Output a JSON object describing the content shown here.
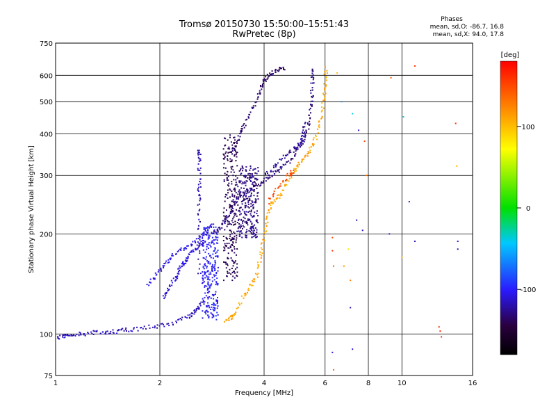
{
  "chart_data": {
    "type": "scatter",
    "title": "Tromsø 20150730 15:50:00–15:51:43",
    "subtitle": "RwPretec (8p)",
    "xlabel": "Frequency [MHz]",
    "ylabel": "Stationary phase Virtual Height [km]",
    "x_scale": "log",
    "y_scale": "log",
    "xlim": [
      1,
      16
    ],
    "ylim": [
      75,
      750
    ],
    "x_ticks": [
      1,
      2,
      4,
      6,
      8,
      10,
      16
    ],
    "x_tick_labels": [
      "1",
      "2",
      "4",
      "6",
      "8",
      "10",
      "16"
    ],
    "y_ticks": [
      75,
      100,
      200,
      300,
      400,
      500,
      600,
      750
    ],
    "y_tick_labels": [
      "75",
      "100",
      "200",
      "300",
      "400",
      "500",
      "600",
      "750"
    ],
    "grid": true,
    "phases_box": {
      "title": "Phases",
      "line_o": "mean, sd,O: -86.7, 16.8",
      "line_x": "mean, sd,X:  94.0, 17.8"
    },
    "colorbar": {
      "label": "[deg]",
      "range": [
        -180,
        180
      ],
      "ticks": [
        100,
        0,
        -100
      ],
      "tick_labels": [
        "100",
        "0",
        "-100"
      ]
    },
    "traces": [
      {
        "phase": -115,
        "points": [
          [
            1.0,
            97
          ],
          [
            1.05,
            98
          ],
          [
            1.1,
            100
          ],
          [
            1.2,
            100
          ],
          [
            1.3,
            101
          ],
          [
            1.4,
            101
          ],
          [
            1.5,
            102
          ],
          [
            1.6,
            103
          ],
          [
            1.8,
            104
          ],
          [
            2.0,
            106
          ],
          [
            2.2,
            108
          ],
          [
            2.4,
            112
          ],
          [
            2.5,
            116
          ],
          [
            2.6,
            120
          ],
          [
            2.7,
            128
          ]
        ]
      },
      {
        "phase": -110,
        "points": [
          [
            2.05,
            128
          ],
          [
            2.1,
            135
          ],
          [
            2.2,
            145
          ],
          [
            2.25,
            150
          ],
          [
            2.3,
            160
          ],
          [
            2.35,
            165
          ],
          [
            2.4,
            170
          ],
          [
            2.5,
            178
          ],
          [
            2.6,
            185
          ],
          [
            2.7,
            190
          ]
        ]
      },
      {
        "phase": -105,
        "points": [
          [
            1.85,
            140
          ],
          [
            1.95,
            150
          ],
          [
            2.05,
            160
          ],
          [
            2.15,
            170
          ],
          [
            2.3,
            180
          ],
          [
            2.45,
            185
          ],
          [
            2.6,
            195
          ],
          [
            2.75,
            205
          ],
          [
            2.85,
            215
          ]
        ]
      },
      {
        "phase": -120,
        "points": [
          [
            2.6,
            150
          ],
          [
            2.6,
            200
          ],
          [
            2.6,
            240
          ],
          [
            2.6,
            270
          ],
          [
            2.6,
            300
          ],
          [
            2.6,
            340
          ],
          [
            2.6,
            360
          ]
        ]
      },
      {
        "phase": -130,
        "points": [
          [
            2.85,
            200
          ],
          [
            2.95,
            205
          ],
          [
            3.05,
            215
          ],
          [
            3.15,
            225
          ],
          [
            3.25,
            240
          ],
          [
            3.35,
            255
          ],
          [
            3.5,
            265
          ],
          [
            3.7,
            275
          ],
          [
            3.9,
            285
          ],
          [
            4.1,
            295
          ],
          [
            4.3,
            305
          ],
          [
            4.5,
            315
          ],
          [
            4.8,
            335
          ],
          [
            5.0,
            360
          ],
          [
            5.2,
            380
          ],
          [
            5.35,
            420
          ],
          [
            5.45,
            470
          ],
          [
            5.5,
            520
          ],
          [
            5.52,
            590
          ],
          [
            5.53,
            630
          ]
        ]
      },
      {
        "phase": -135,
        "points": [
          [
            3.3,
            360
          ],
          [
            3.4,
            395
          ],
          [
            3.5,
            420
          ],
          [
            3.7,
            470
          ],
          [
            3.85,
            520
          ],
          [
            3.95,
            560
          ],
          [
            4.05,
            590
          ],
          [
            4.2,
            610
          ],
          [
            4.4,
            625
          ],
          [
            4.6,
            630
          ]
        ]
      },
      {
        "phase": -125,
        "points": [
          [
            4.0,
            300
          ],
          [
            4.3,
            320
          ],
          [
            4.6,
            345
          ],
          [
            4.9,
            360
          ],
          [
            5.1,
            375
          ],
          [
            5.2,
            400
          ],
          [
            5.25,
            430
          ]
        ]
      },
      {
        "phase": 110,
        "points": [
          [
            3.1,
            110
          ],
          [
            3.2,
            112
          ],
          [
            3.3,
            115
          ],
          [
            3.5,
            130
          ],
          [
            3.65,
            140
          ],
          [
            3.8,
            150
          ],
          [
            3.9,
            170
          ],
          [
            4.0,
            195
          ],
          [
            4.05,
            215
          ],
          [
            4.15,
            240
          ],
          [
            4.3,
            255
          ],
          [
            4.5,
            265
          ],
          [
            4.7,
            290
          ],
          [
            4.9,
            310
          ],
          [
            5.1,
            330
          ],
          [
            5.35,
            350
          ],
          [
            5.6,
            380
          ],
          [
            5.8,
            430
          ],
          [
            5.95,
            500
          ],
          [
            6.0,
            560
          ],
          [
            6.05,
            640
          ]
        ]
      },
      {
        "phase": 150,
        "points": [
          [
            4.1,
            250
          ],
          [
            4.4,
            275
          ],
          [
            4.7,
            300
          ],
          [
            4.9,
            310
          ]
        ]
      }
    ],
    "columns": [
      {
        "phase": -140,
        "freq_range": [
          3.05,
          3.35
        ],
        "height_range": [
          145,
          400
        ]
      },
      {
        "phase": -130,
        "freq_range": [
          3.35,
          3.85
        ],
        "height_range": [
          195,
          320
        ]
      },
      {
        "phase": -100,
        "freq_range": [
          2.65,
          2.95
        ],
        "height_range": [
          110,
          210
        ]
      }
    ],
    "scattered_points": [
      {
        "f": 6.3,
        "h": 195,
        "phase": 150
      },
      {
        "f": 6.3,
        "h": 178,
        "phase": 160
      },
      {
        "f": 6.35,
        "h": 160,
        "phase": 140
      },
      {
        "f": 6.8,
        "h": 160,
        "phase": 120
      },
      {
        "f": 7.1,
        "h": 145,
        "phase": 130
      },
      {
        "f": 6.3,
        "h": 88,
        "phase": -110
      },
      {
        "f": 6.35,
        "h": 78,
        "phase": 140
      },
      {
        "f": 6.5,
        "h": 610,
        "phase": 100
      },
      {
        "f": 6.7,
        "h": 500,
        "phase": -60
      },
      {
        "f": 7.2,
        "h": 460,
        "phase": -40
      },
      {
        "f": 7.5,
        "h": 410,
        "phase": -110
      },
      {
        "f": 7.8,
        "h": 380,
        "phase": 150
      },
      {
        "f": 7.0,
        "h": 180,
        "phase": 80
      },
      {
        "f": 7.4,
        "h": 220,
        "phase": -120
      },
      {
        "f": 7.7,
        "h": 205,
        "phase": -110
      },
      {
        "f": 7.1,
        "h": 120,
        "phase": -120
      },
      {
        "f": 7.2,
        "h": 90,
        "phase": -110
      },
      {
        "f": 9.3,
        "h": 590,
        "phase": 140
      },
      {
        "f": 9.2,
        "h": 200,
        "phase": -110
      },
      {
        "f": 10.0,
        "h": 170,
        "phase": 100
      },
      {
        "f": 10.5,
        "h": 250,
        "phase": -110
      },
      {
        "f": 10.9,
        "h": 640,
        "phase": 160
      },
      {
        "f": 10.9,
        "h": 190,
        "phase": -120
      },
      {
        "f": 12.8,
        "h": 105,
        "phase": 160
      },
      {
        "f": 12.9,
        "h": 102,
        "phase": 165
      },
      {
        "f": 13.0,
        "h": 98,
        "phase": 165
      },
      {
        "f": 14.3,
        "h": 430,
        "phase": 160
      },
      {
        "f": 14.4,
        "h": 320,
        "phase": 100
      },
      {
        "f": 14.5,
        "h": 190,
        "phase": -110
      },
      {
        "f": 14.5,
        "h": 180,
        "phase": -120
      },
      {
        "f": 10.1,
        "h": 450,
        "phase": -40
      },
      {
        "f": 7.9,
        "h": 300,
        "phase": 130
      }
    ]
  }
}
